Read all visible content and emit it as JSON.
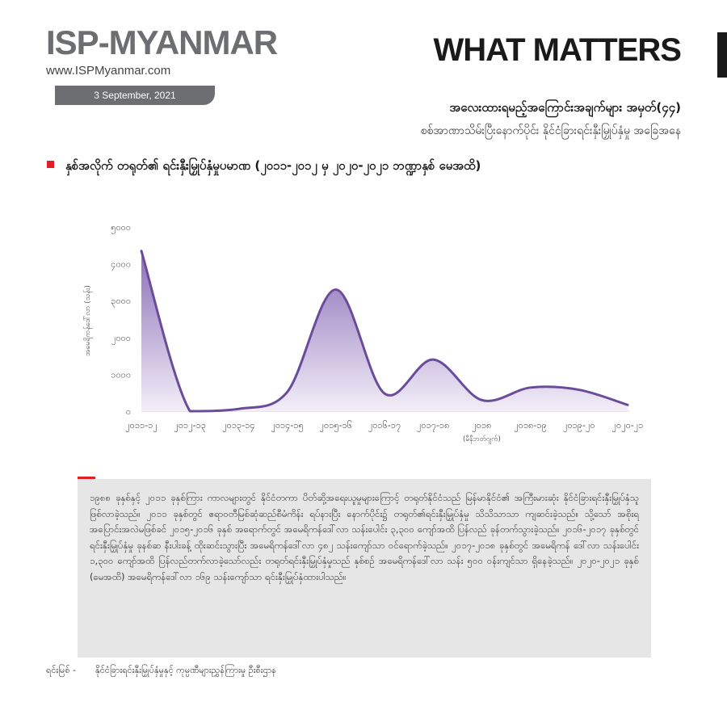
{
  "header": {
    "logo": "ISP-MYANMAR",
    "website": "www.ISPMyanmar.com",
    "date": "3 September, 2021",
    "brand": "WHAT MATTERS",
    "title": "အလေးထားရမည့်အကြောင်းအချက်များ အမှတ်(၄၄)",
    "subtitle": "စစ်အာဏာသိမ်းပြီးနောက်ပိုင်း နိုင်ငံခြားရင်းနှီးမြှုပ်နှံမှု အခြေအနေ"
  },
  "section_title": "နှစ်အလိုက် တရုတ်၏ ရင်းနှီးမြှုပ်နှံမှုပမာဏ (၂၀၁၁-၂၀၁၂ မှ ၂၀၂၀-၂၀၂၁ ဘဏ္ဍာနှစ် မေအထိ)",
  "chart_data": {
    "type": "area",
    "ylabel": "အမေရိကန်ဒေါ်လာ (သန်း)",
    "ylim": [
      0,
      5000
    ],
    "yticks": [
      "၀",
      "၁၀၀၀",
      "၂၀၀၀",
      "၃၀၀၀",
      "၄၀၀၀",
      "၅၀၀၀"
    ],
    "ytick_values": [
      0,
      1000,
      2000,
      3000,
      4000,
      5000
    ],
    "categories": [
      "၂၀၁၁-၁၂",
      "၂၀၁၂-၁၃",
      "၂၀၁၃-၁၄",
      "၂၀၁၄-၁၅",
      "၂၀၁၅-၁၆",
      "၂၀၁၆-၁၇",
      "၂၀၁၇-၁၈",
      "၂၀၁၈",
      "၂၀၁၈-၁၉",
      "၂၀၁၉-၂၀",
      "၂၀၂၀-၂၁"
    ],
    "category_notes": [
      "",
      "",
      "",
      "",
      "",
      "",
      "",
      "(မီနီဘတ်ဂျက်)",
      "",
      "",
      ""
    ],
    "values": [
      4350,
      0,
      60,
      520,
      3300,
      480,
      1400,
      300,
      640,
      580,
      170
    ],
    "color": "#6b4c9a",
    "fill_top": "#8c6fb8",
    "fill_bottom": "#f2eef8",
    "grid": false
  },
  "note": {
    "text": "၁၉၈၈ ခုနှစ်နှင့် ၂၀၁၁ ခုနှစ်ကြား ကာလများတွင် နိုင်ငံတကာ ပိတ်ဆို့အရေးယူမှုများကြောင့် တရုတ်နိုင်ငံသည် မြန်မာနိုင်ငံ၏ အကြီးမားဆုံး နိုင်ငံခြားရင်းနှီးမြှုပ်နှံသူ ဖြစ်လာခဲ့သည်။ ၂၀၁၁ ခုနှစ်တွင် ဧရာဝတီမြစ်ဆုံဆည်စီမံကိန်း ရပ်နားပြီး နောက်ပိုင်း၌ တရုတ်၏ရင်းနှီးမြှုပ်နှံမှု သိသိသာသာ ကျဆင်းခဲ့သည်။ သို့သော် အစိုးရအပြောင်းအလဲမဖြစ်ခင် ၂၀၁၅-၂၀၁၆ ခုနှစ် အရောက်တွင် အမေရိကန်ဒေါ်လာ သန်းပေါင်း ၃,၃၀၀ ကျော်အထိ ပြန်လည် ခုန်တက်သွားခဲ့သည်။ ၂၀၁၆-၂၀၁၇ ခုနှစ်တွင် ရင်းနှီးမြှုပ်နှံမှု ခုနစ်ဆ နီးပါးခန့် ထိုးဆင်းသွားပြီး အမေရိကန်ဒေါ်လာ ၄၈၂ သန်းကျော်သာ ဝင်ရောက်ခဲ့သည်။ ၂၀၁၇-၂၀၁၈ ခုနှစ်တွင် အမေရိကန် ဒေါ်လာ သန်းပေါင်း ၁,၃၀၀ ကျော်အထိ ပြန်လည်တက်လာခဲ့သော်လည်း တရုတ်ရင်းနှီးမြှုပ်နှံမှုသည် နှစ်စဉ် အမေရိကန်ဒေါ်လာ သန်း ၅၀၀ ဝန်းကျင်သာ ရှိနေခဲ့သည်။ ၂၀၂၀-၂၀၂၁ ခုနှစ် (မေအထိ) အမေရိကန်ဒေါ်လာ ၁၆၉ သန်းကျော်သာ ရင်းနှီးမြှုပ်နှံထားပါသည်။"
  },
  "source": {
    "label": "ရင်းမြစ် -",
    "text": "နိုင်ငံခြားရင်းနှီးမြှုပ်နှံမှုနှင့် ကုမ္ပဏီများညွှန်ကြားမှု ဦးစီးဌာန"
  }
}
